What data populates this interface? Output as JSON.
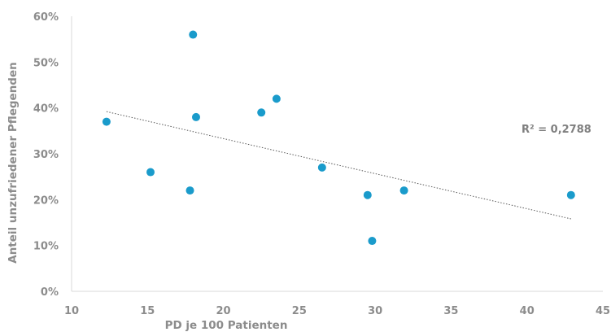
{
  "chart_data": {
    "type": "scatter",
    "title": "",
    "xlabel": "PD je 100 Patienten",
    "ylabel": "Anteil unzufriedener Pflegenden",
    "xlim": [
      10,
      45
    ],
    "ylim": [
      0,
      60
    ],
    "x_ticks": [
      10,
      15,
      20,
      25,
      30,
      35,
      40,
      45
    ],
    "y_ticks": [
      0,
      10,
      20,
      30,
      40,
      50,
      60
    ],
    "y_tick_labels": [
      "0%",
      "10%",
      "20%",
      "30%",
      "40%",
      "50%",
      "60%"
    ],
    "grid": false,
    "legend": "none",
    "series": [
      {
        "points": [
          {
            "x": 12.3,
            "y": 37
          },
          {
            "x": 15.2,
            "y": 26
          },
          {
            "x": 17.8,
            "y": 22
          },
          {
            "x": 18.0,
            "y": 56
          },
          {
            "x": 18.2,
            "y": 38
          },
          {
            "x": 22.5,
            "y": 39
          },
          {
            "x": 23.5,
            "y": 42
          },
          {
            "x": 26.5,
            "y": 27
          },
          {
            "x": 29.5,
            "y": 21
          },
          {
            "x": 29.8,
            "y": 11
          },
          {
            "x": 31.9,
            "y": 22
          },
          {
            "x": 42.9,
            "y": 21
          }
        ],
        "color": "#1a9bcb"
      }
    ],
    "trendline": {
      "type": "linear",
      "x_range": [
        12.3,
        42.9
      ],
      "y_values": [
        39.2,
        15.8
      ],
      "style": "dotted",
      "color": "#595959"
    },
    "annotations": [
      {
        "text": "R² = 0,2788"
      }
    ],
    "colors": {
      "marker": "#1a9bcb",
      "axis": "#d9d9d9",
      "text": "#8c8c8c"
    }
  }
}
